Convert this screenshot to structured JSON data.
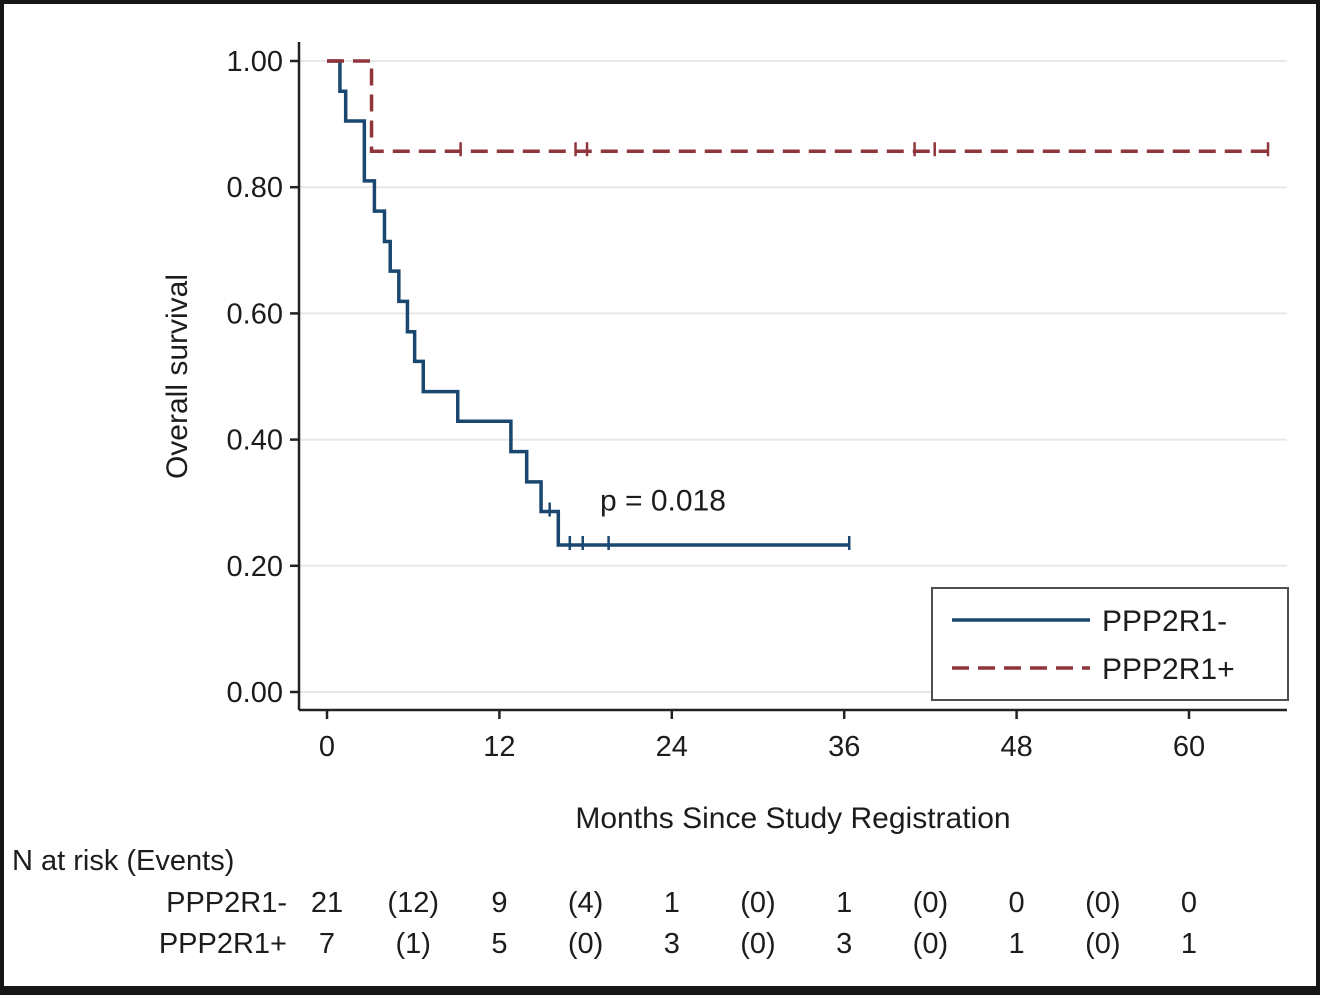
{
  "figure": {
    "background": "#ffffff",
    "border_color": "#161616",
    "text_color": "#1c1c1c",
    "grid_color": "#e8e8e8",
    "axis_color": "#222222"
  },
  "chart_data": {
    "type": "line",
    "subtype": "kaplan_meier_step",
    "title": "",
    "xlabel": "Months Since Study Registration",
    "ylabel": "Overall survival",
    "xlim": [
      0,
      66.5
    ],
    "ylim": [
      0,
      1.0
    ],
    "xticks": [
      0,
      12,
      24,
      36,
      48,
      60
    ],
    "yticks": [
      0.0,
      0.2,
      0.4,
      0.6,
      0.8,
      1.0
    ],
    "ytick_labels": [
      "0.00",
      "0.20",
      "0.40",
      "0.60",
      "0.80",
      "1.00"
    ],
    "grid": "horizontal-major",
    "legend_position": "bottom-right-inside",
    "annotation": {
      "text": "p = 0.018",
      "x": 19.0,
      "y": 0.305
    },
    "series": [
      {
        "name": "PPP2R1-",
        "color": "#1a476f",
        "line_style": "solid",
        "steps": [
          [
            0,
            1.0
          ],
          [
            0.9,
            0.952
          ],
          [
            1.3,
            0.905
          ],
          [
            2.6,
            0.81
          ],
          [
            3.3,
            0.762
          ],
          [
            4.0,
            0.714
          ],
          [
            4.4,
            0.667
          ],
          [
            5.0,
            0.619
          ],
          [
            5.6,
            0.571
          ],
          [
            6.1,
            0.524
          ],
          [
            6.7,
            0.476
          ],
          [
            9.1,
            0.429
          ],
          [
            12.8,
            0.381
          ],
          [
            13.9,
            0.333
          ],
          [
            14.9,
            0.286
          ],
          [
            16.1,
            0.233
          ]
        ],
        "end_x": 36.4,
        "censor_marks": [
          [
            15.5,
            0.286
          ],
          [
            16.9,
            0.233
          ],
          [
            17.8,
            0.233
          ],
          [
            19.6,
            0.233
          ],
          [
            36.35,
            0.233
          ]
        ]
      },
      {
        "name": "PPP2R1+",
        "color": "#90353b",
        "line_style": "dashed",
        "steps": [
          [
            0,
            1.0
          ],
          [
            3.1,
            0.857
          ]
        ],
        "end_x": 65.5,
        "censor_marks": [
          [
            9.3,
            0.857
          ],
          [
            17.3,
            0.857
          ],
          [
            18.1,
            0.857
          ],
          [
            40.9,
            0.857
          ],
          [
            42.3,
            0.857
          ],
          [
            65.5,
            0.857
          ]
        ]
      }
    ],
    "legend": [
      {
        "label": "PPP2R1-",
        "color": "#1a476f",
        "line_style": "solid"
      },
      {
        "label": "PPP2R1+",
        "color": "#90353b",
        "line_style": "dashed"
      }
    ],
    "risk_table": {
      "header": "N at risk (Events)",
      "column_months": [
        0,
        6,
        12,
        18,
        24,
        30,
        36,
        42,
        48,
        54,
        60
      ],
      "rows": [
        {
          "label": "PPP2R1-",
          "values": [
            "21",
            "(12)",
            "9",
            "(4)",
            "1",
            "(0)",
            "1",
            "(0)",
            "0",
            "(0)",
            "0"
          ]
        },
        {
          "label": "PPP2R1+",
          "values": [
            "7",
            "(1)",
            "5",
            "(0)",
            "3",
            "(0)",
            "3",
            "(0)",
            "1",
            "(0)",
            "1"
          ]
        }
      ]
    }
  }
}
